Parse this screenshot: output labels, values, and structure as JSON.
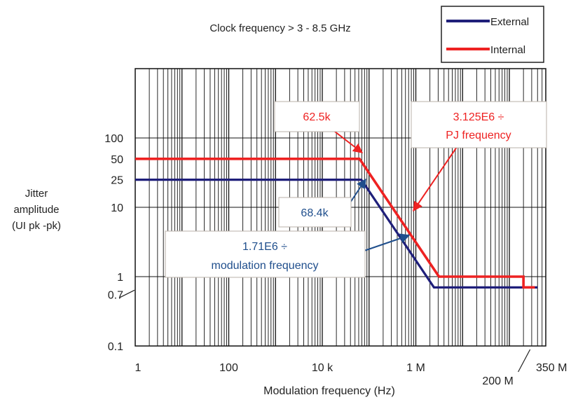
{
  "chart_data": {
    "type": "line",
    "title": "Clock frequency > 3 -  8.5 GHz",
    "xlabel": "Modulation frequency (Hz)",
    "ylabel": [
      "Jitter",
      "amplitude",
      "(UI pk -pk)"
    ],
    "x_scale": "log",
    "y_scale": "log",
    "xlim": [
      1,
      600000000
    ],
    "ylim": [
      0.1,
      1000
    ],
    "x_ticks": [
      {
        "value": 1,
        "label": "1"
      },
      {
        "value": 100,
        "label": "100"
      },
      {
        "value": 10000,
        "label": "10 k"
      },
      {
        "value": 1000000,
        "label": "1 M"
      },
      {
        "value": 200000000,
        "label": "200 M"
      },
      {
        "value": 350000000,
        "label": "350 M"
      }
    ],
    "y_ticks": [
      {
        "value": 0.1,
        "label": "0.1"
      },
      {
        "value": 0.7,
        "label": "0.7"
      },
      {
        "value": 1,
        "label": "1"
      },
      {
        "value": 10,
        "label": "10"
      },
      {
        "value": 25,
        "label": "25"
      },
      {
        "value": 50,
        "label": "50"
      },
      {
        "value": 100,
        "label": "100"
      }
    ],
    "grid": true,
    "legend_position": "top-right",
    "series": [
      {
        "name": "External",
        "color": "#1f1f7a",
        "points": [
          [
            1,
            25
          ],
          [
            68400,
            25
          ],
          [
            2000000,
            0.7
          ],
          [
            200000000,
            0.7
          ],
          [
            200000000,
            0.7
          ],
          [
            350000000,
            0.7
          ]
        ],
        "points_display": [
          [
            1,
            25
          ],
          [
            68400,
            25
          ],
          [
            2442857,
            0.7
          ],
          [
            250000000,
            0.7
          ],
          [
            250000000,
            0.7
          ],
          [
            400000000,
            0.7
          ]
        ]
      },
      {
        "name": "Internal",
        "color": "#ee2222",
        "points": [
          [
            1,
            50
          ],
          [
            62500,
            50
          ],
          [
            3125000,
            1
          ],
          [
            200000000,
            1
          ],
          [
            200000000,
            0.7
          ],
          [
            350000000,
            0.7
          ]
        ]
      }
    ],
    "annotations": [
      {
        "id": "internal-corner",
        "text": [
          "62.5k"
        ],
        "color": "#ee2222"
      },
      {
        "id": "internal-slope",
        "text": [
          "3.125E6 ÷",
          "PJ frequency"
        ],
        "color": "#ee2222"
      },
      {
        "id": "external-corner",
        "text": [
          "68.4k"
        ],
        "color": "#1f4e8c"
      },
      {
        "id": "external-slope",
        "text": [
          "1.71E6 ÷",
          "modulation frequency"
        ],
        "color": "#1f4e8c"
      }
    ]
  }
}
